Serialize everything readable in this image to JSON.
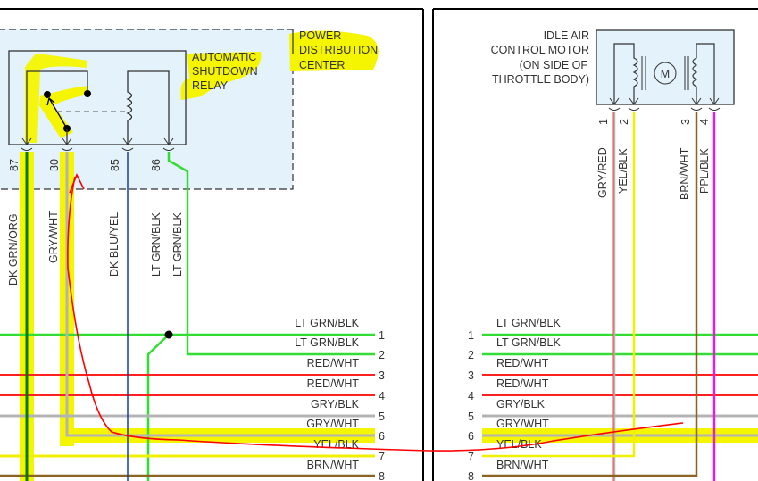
{
  "left_panel": {
    "pdc_label": [
      "POWER",
      "DISTRIBUTION",
      "CENTER"
    ],
    "relay_label": [
      "AUTOMATIC",
      "SHUTDOWN",
      "RELAY"
    ],
    "relay_pins": [
      "87",
      "30",
      "85",
      "86"
    ],
    "vertical_wires": [
      "DK GRN/ORG",
      "GRY/WHT",
      "DK BLU/YEL",
      "LT GRN/BLK",
      "LT GRN/BLK"
    ],
    "connector_rows": [
      {
        "pin": "1",
        "label": "LT GRN/BLK"
      },
      {
        "pin": "2",
        "label": "LT GRN/BLK"
      },
      {
        "pin": "3",
        "label": "RED/WHT"
      },
      {
        "pin": "4",
        "label": "RED/WHT"
      },
      {
        "pin": "5",
        "label": "GRY/BLK"
      },
      {
        "pin": "6",
        "label": "GRY/WHT"
      },
      {
        "pin": "7",
        "label": "YEL/BLK"
      },
      {
        "pin": "8",
        "label": "BRN/WHT"
      }
    ]
  },
  "right_panel": {
    "motor_label": [
      "IDLE AIR",
      "CONTROL MOTOR",
      "(ON SIDE OF",
      "THROTTLE BODY)"
    ],
    "motor_symbol": "M",
    "motor_pins": [
      "1",
      "2",
      "3",
      "4"
    ],
    "vertical_wires": [
      "GRY/RED",
      "YEL/BLK",
      "BRN/WHT",
      "PPL/BLK"
    ],
    "connector_rows": [
      {
        "pin": "1",
        "label": "LT GRN/BLK"
      },
      {
        "pin": "2",
        "label": "LT GRN/BLK"
      },
      {
        "pin": "3",
        "label": "RED/WHT"
      },
      {
        "pin": "4",
        "label": "RED/WHT"
      },
      {
        "pin": "5",
        "label": "GRY/BLK"
      },
      {
        "pin": "6",
        "label": "GRY/WHT"
      },
      {
        "pin": "7",
        "label": "YEL/BLK"
      },
      {
        "pin": "8",
        "label": "BRN/WHT"
      }
    ]
  },
  "colors": {
    "highlight": "#f5f500",
    "annotation": "#ff0000",
    "lt_grn": "#33dd33",
    "dk_grn": "#007a00",
    "red": "#ff2020",
    "gry": "#b4b4b4",
    "yel": "#f0f000",
    "brn": "#8a6420",
    "ppl": "#e020e0",
    "blu": "#1a3aa0",
    "box_fill": "#e3f2fb"
  }
}
